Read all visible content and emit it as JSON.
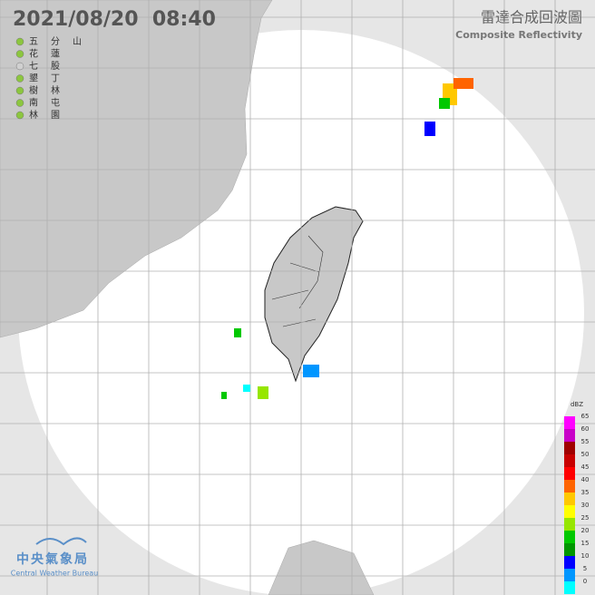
{
  "header": {
    "timestamp": "2021/08/20  08:40",
    "title": "雷達合成回波圖",
    "subtitle": "Composite Reflectivity"
  },
  "stations": [
    {
      "name": "五分山",
      "color": "#8cc63f"
    },
    {
      "name": "花蓮",
      "color": "#8cc63f"
    },
    {
      "name": "七股",
      "color": "#d0d0d0"
    },
    {
      "name": "墾丁",
      "color": "#8cc63f"
    },
    {
      "name": "樹林",
      "color": "#8cc63f"
    },
    {
      "name": "南屯",
      "color": "#8cc63f"
    },
    {
      "name": "林園",
      "color": "#8cc63f"
    }
  ],
  "colorbar": {
    "unit": "dBZ",
    "ticks": [
      65,
      60,
      55,
      50,
      45,
      40,
      35,
      30,
      25,
      20,
      15,
      10,
      5,
      0
    ],
    "colors": [
      "#ff00ff",
      "#c800c8",
      "#a00000",
      "#c80000",
      "#ff0000",
      "#ff6400",
      "#ffc800",
      "#ffff00",
      "#96e600",
      "#00c800",
      "#009600",
      "#0000ff",
      "#0096ff",
      "#00ffff"
    ]
  },
  "logo": {
    "name": "中央氣象局",
    "english": "Central Weather Bureau"
  }
}
